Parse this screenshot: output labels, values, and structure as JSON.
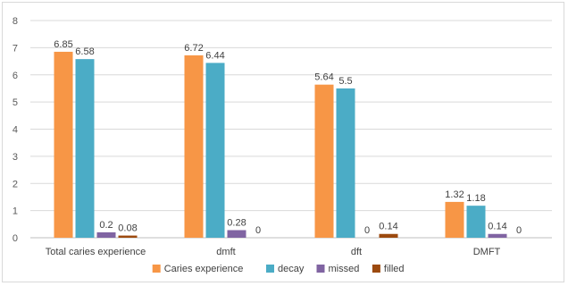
{
  "chart_data": {
    "type": "bar",
    "title": "",
    "xlabel": "",
    "ylabel": "",
    "ylim": [
      0,
      8
    ],
    "yticks": [
      0,
      1,
      2,
      3,
      4,
      5,
      6,
      7,
      8
    ],
    "categories": [
      "Total caries experience",
      "dmft",
      "dft",
      "DMFT"
    ],
    "series": [
      {
        "name": "Caries experience",
        "color": "#F79646",
        "values": [
          6.85,
          6.72,
          5.64,
          1.32
        ],
        "labels": [
          "6.85",
          "6.72",
          "5.64",
          "1.32"
        ]
      },
      {
        "name": "decay",
        "color": "#4BACC6",
        "values": [
          6.58,
          6.44,
          5.5,
          1.18
        ],
        "labels": [
          "6.58",
          "6.44",
          "5.5",
          "1.18"
        ]
      },
      {
        "name": "missed",
        "color": "#8064A2",
        "values": [
          0.2,
          0.28,
          0,
          0.14
        ],
        "labels": [
          "0.2",
          "0.28",
          "0",
          "0.14"
        ]
      },
      {
        "name": "filled",
        "color": "#9C4A0F",
        "values": [
          0.08,
          0,
          0.14,
          0
        ],
        "labels": [
          "0.08",
          "0",
          "0.14",
          "0"
        ]
      }
    ],
    "grid": true,
    "legend": "bottom"
  }
}
